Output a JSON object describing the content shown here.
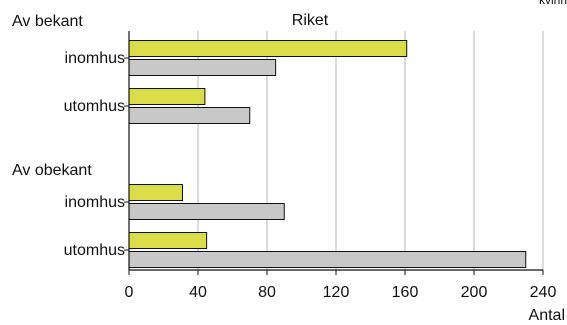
{
  "chart_data": {
    "type": "bar",
    "orientation": "horizontal",
    "title": "Riket",
    "corner_label": "kvinn",
    "xlabel": "Antal",
    "ylabel": "",
    "xlim": [
      0,
      240
    ],
    "xticks": [
      0,
      40,
      80,
      120,
      160,
      200,
      240
    ],
    "xtick_labels": [
      "0",
      "40",
      "80",
      "120",
      "160",
      "200",
      "240"
    ],
    "grid": true,
    "groups": [
      {
        "label": "Av bekant",
        "categories": [
          {
            "label": "inomhus",
            "values": [
              161,
              85
            ]
          },
          {
            "label": "utomhus",
            "values": [
              44,
              70
            ]
          }
        ]
      },
      {
        "label": "Av obekant",
        "categories": [
          {
            "label": "inomhus",
            "values": [
              31,
              90
            ]
          },
          {
            "label": "utomhus",
            "values": [
              45,
              230
            ]
          }
        ]
      }
    ],
    "series": [
      {
        "color": "#d9de48"
      },
      {
        "color": "#c8c8c8"
      }
    ],
    "colors": {
      "grid": "#b7b7b7",
      "axis": "#111111",
      "bar_outline": "#111111"
    }
  }
}
